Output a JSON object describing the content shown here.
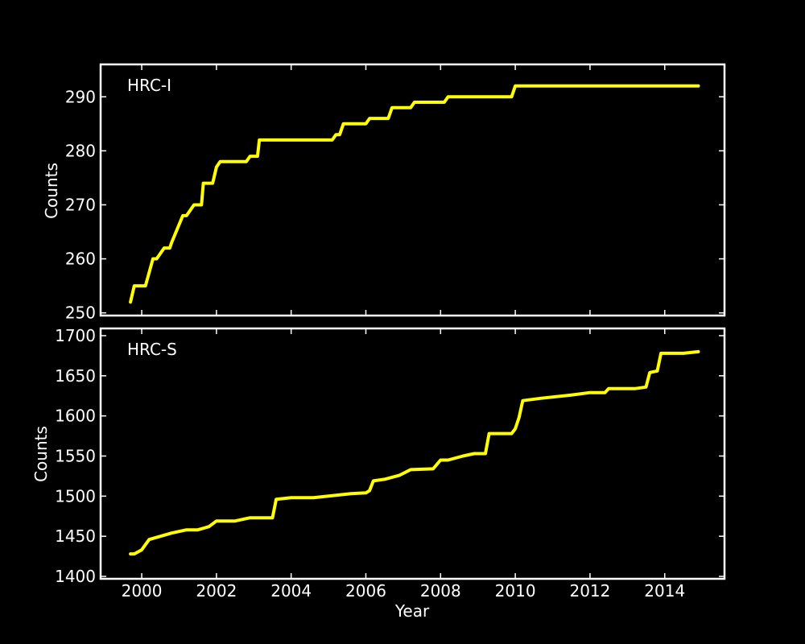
{
  "colors": {
    "background": "#000000",
    "axes": "#ffffff",
    "line": "#ffff00"
  },
  "chart_data": [
    {
      "type": "line",
      "panel_label": "HRC-I",
      "xlabel": "",
      "ylabel": "Counts",
      "xlim": [
        1998.9,
        2015.6
      ],
      "ylim": [
        249.5,
        296
      ],
      "xticks": [
        2000,
        2002,
        2004,
        2006,
        2008,
        2010,
        2012,
        2014
      ],
      "xtick_labels": [
        "",
        "",
        "",
        "",
        "",
        "",
        "",
        ""
      ],
      "yticks": [
        250,
        260,
        270,
        280,
        290
      ],
      "ytick_labels": [
        "250",
        "260",
        "270",
        "280",
        "290"
      ],
      "grid": false,
      "series": [
        {
          "x": [
            1999.7,
            1999.8,
            2000.0,
            2000.05,
            2000.1,
            2000.3,
            2000.4,
            2000.6,
            2000.65,
            2000.7,
            2000.75,
            2000.8,
            2001.1,
            2001.2,
            2001.4,
            2001.6,
            2001.65,
            2001.9,
            2002.0,
            2002.1,
            2002.4,
            2002.8,
            2002.9,
            2003.1,
            2003.15,
            2003.2,
            2003.6,
            2005.1,
            2005.2,
            2005.3,
            2005.4,
            2006.0,
            2006.1,
            2006.3,
            2006.6,
            2006.7,
            2007.2,
            2007.3,
            2007.8,
            2008.1,
            2008.2,
            2009.9,
            2010.0,
            2014.9
          ],
          "y": [
            252,
            255,
            255,
            255,
            255,
            260,
            260,
            262,
            262,
            262,
            262,
            263,
            268,
            268,
            270,
            270,
            274,
            274,
            277,
            278,
            278,
            278,
            279,
            279,
            282,
            282,
            282,
            282,
            283,
            283,
            285,
            285,
            286,
            286,
            286,
            288,
            288,
            289,
            289,
            289,
            290,
            290,
            292,
            292
          ],
          "color": "#ffff00"
        }
      ]
    },
    {
      "type": "line",
      "panel_label": "HRC-S",
      "xlabel": "Year",
      "ylabel": "Counts",
      "xlim": [
        1998.9,
        2015.6
      ],
      "ylim": [
        1397,
        1709
      ],
      "xticks": [
        2000,
        2002,
        2004,
        2006,
        2008,
        2010,
        2012,
        2014
      ],
      "xtick_labels": [
        "2000",
        "2002",
        "2004",
        "2006",
        "2008",
        "2010",
        "2012",
        "2014"
      ],
      "yticks": [
        1400,
        1450,
        1500,
        1550,
        1600,
        1650,
        1700
      ],
      "ytick_labels": [
        "1400",
        "1450",
        "1500",
        "1550",
        "1600",
        "1650",
        "1700"
      ],
      "grid": false,
      "series": [
        {
          "x": [
            1999.7,
            1999.8,
            2000.0,
            2000.2,
            2000.5,
            2000.8,
            2001.2,
            2001.5,
            2001.8,
            2002.0,
            2002.5,
            2002.9,
            2003.3,
            2003.5,
            2003.6,
            2004.0,
            2004.6,
            2005.0,
            2005.6,
            2006.0,
            2006.1,
            2006.2,
            2006.5,
            2006.9,
            2007.2,
            2007.8,
            2008.0,
            2008.2,
            2008.6,
            2008.9,
            2009.2,
            2009.3,
            2009.9,
            2010.0,
            2010.1,
            2010.2,
            2010.7,
            2011.5,
            2012.0,
            2012.4,
            2012.5,
            2013.2,
            2013.5,
            2013.6,
            2013.8,
            2013.9,
            2014.5,
            2014.9
          ],
          "y": [
            1428,
            1428,
            1433,
            1446,
            1450,
            1454,
            1458,
            1458,
            1462,
            1469,
            1469,
            1473,
            1473,
            1473,
            1496,
            1498,
            1498,
            1500,
            1503,
            1504,
            1507,
            1519,
            1521,
            1526,
            1533,
            1534,
            1545,
            1545,
            1550,
            1553,
            1553,
            1578,
            1578,
            1584,
            1598,
            1619,
            1622,
            1626,
            1629,
            1629,
            1634,
            1634,
            1636,
            1654,
            1656,
            1678,
            1678,
            1680
          ],
          "color": "#ffff00"
        }
      ]
    }
  ]
}
